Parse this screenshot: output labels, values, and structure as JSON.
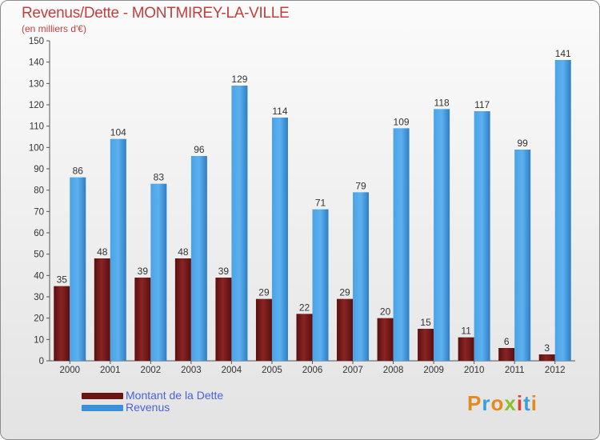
{
  "title": "Revenus/Dette - MONTMIREY-LA-VILLE",
  "subtitle": "(en milliers d'€)",
  "chart_data": {
    "type": "bar",
    "categories": [
      "2000",
      "2001",
      "2002",
      "2003",
      "2004",
      "2005",
      "2006",
      "2007",
      "2008",
      "2009",
      "2010",
      "2011",
      "2012"
    ],
    "series": [
      {
        "name": "Montant de la Dette",
        "color": "#7a1a1a",
        "values": [
          35,
          48,
          39,
          48,
          39,
          29,
          22,
          29,
          20,
          15,
          11,
          6,
          3
        ]
      },
      {
        "name": "Revenus",
        "color": "#3b90d8",
        "values": [
          86,
          104,
          83,
          96,
          129,
          114,
          71,
          79,
          109,
          118,
          117,
          99,
          141
        ]
      }
    ],
    "y_ticks": [
      0,
      10,
      20,
      30,
      40,
      50,
      60,
      70,
      80,
      90,
      100,
      110,
      120,
      130,
      140,
      150
    ],
    "ylim": [
      0,
      150
    ],
    "grid": false,
    "legend": "bottom-left"
  },
  "legend": {
    "debt_label": "Montant de la Dette",
    "revenue_label": "Revenus"
  },
  "logo": {
    "text": "Proxiti",
    "colors": [
      "#e58a1f",
      "#3aa0d8",
      "#e58a1f",
      "#8fbf2f",
      "#e0402f",
      "#3aa0d8",
      "#e58a1f"
    ]
  }
}
